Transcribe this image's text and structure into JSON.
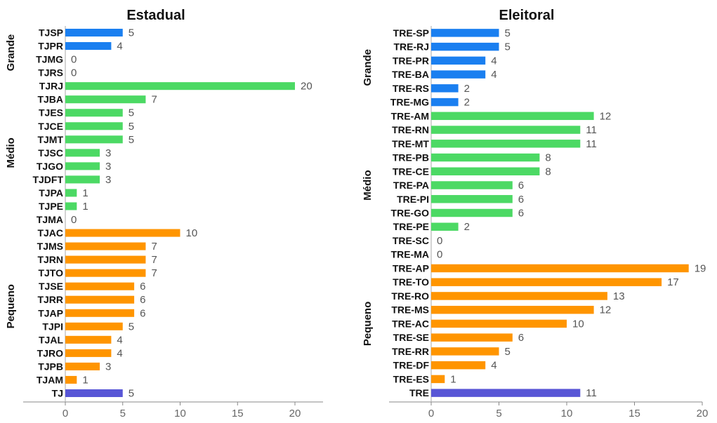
{
  "chart_data": [
    {
      "type": "bar",
      "orientation": "horizontal",
      "title": "Estadual",
      "xlim": [
        0,
        22
      ],
      "xticks": [
        0,
        5,
        10,
        15,
        20
      ],
      "groups": [
        {
          "label": "Grande",
          "color": "#1a7ff0",
          "categories": [
            "TJSP",
            "TJPR",
            "TJMG",
            "TJRS"
          ],
          "values": [
            5,
            4,
            0,
            0
          ]
        },
        {
          "label": "Médio",
          "color": "#4cd964",
          "categories": [
            "TJRJ",
            "TJBA",
            "TJES",
            "TJCE",
            "TJMT",
            "TJSC",
            "TJGO",
            "TJDFT",
            "TJPA",
            "TJPE",
            "TJMA"
          ],
          "values": [
            20,
            7,
            5,
            5,
            5,
            3,
            3,
            3,
            1,
            1,
            0
          ]
        },
        {
          "label": "Pequeno",
          "color": "#ff9500",
          "categories": [
            "TJAC",
            "TJMS",
            "TJRN",
            "TJTO",
            "TJSE",
            "TJRR",
            "TJAP",
            "TJPI",
            "TJAL",
            "TJRO",
            "TJPB",
            "TJAM"
          ],
          "values": [
            10,
            7,
            7,
            7,
            6,
            6,
            6,
            5,
            4,
            4,
            3,
            1
          ]
        },
        {
          "label": "",
          "color": "#5856d6",
          "categories": [
            "TJ"
          ],
          "values": [
            5
          ]
        }
      ]
    },
    {
      "type": "bar",
      "orientation": "horizontal",
      "title": "Eleitoral",
      "xlim": [
        0,
        20
      ],
      "xticks": [
        0,
        5,
        10,
        15,
        20
      ],
      "groups": [
        {
          "label": "Grande",
          "color": "#1a7ff0",
          "categories": [
            "TRE-SP",
            "TRE-RJ",
            "TRE-PR",
            "TRE-BA",
            "TRE-RS",
            "TRE-MG"
          ],
          "values": [
            5,
            5,
            4,
            4,
            2,
            2
          ]
        },
        {
          "label": "Médio",
          "color": "#4cd964",
          "categories": [
            "TRE-AM",
            "TRE-RN",
            "TRE-MT",
            "TRE-PB",
            "TRE-CE",
            "TRE-PA",
            "TRE-PI",
            "TRE-GO",
            "TRE-PE",
            "TRE-SC",
            "TRE-MA"
          ],
          "values": [
            12,
            11,
            11,
            8,
            8,
            6,
            6,
            6,
            2,
            0,
            0
          ]
        },
        {
          "label": "Pequeno",
          "color": "#ff9500",
          "categories": [
            "TRE-AP",
            "TRE-TO",
            "TRE-RO",
            "TRE-MS",
            "TRE-AC",
            "TRE-SE",
            "TRE-RR",
            "TRE-DF",
            "TRE-ES"
          ],
          "values": [
            19,
            17,
            13,
            12,
            10,
            6,
            5,
            4,
            1
          ]
        },
        {
          "label": "",
          "color": "#5856d6",
          "categories": [
            "TRE"
          ],
          "values": [
            11
          ]
        }
      ]
    }
  ]
}
